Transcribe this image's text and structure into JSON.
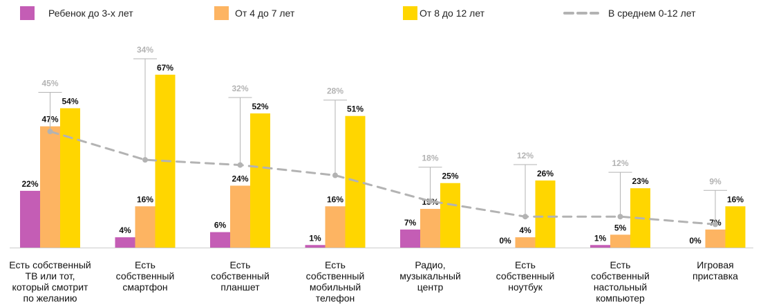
{
  "chart_data": {
    "type": "bar",
    "categories": [
      [
        "Есть собственный",
        "ТВ или тот,",
        "который смотрит",
        "по желанию"
      ],
      [
        "Есть",
        "собственный",
        "смартфон"
      ],
      [
        "Есть",
        "собственный",
        "планшет"
      ],
      [
        "Есть",
        "собственный",
        "мобильный",
        "телефон"
      ],
      [
        "Радио,",
        "музыкальный",
        "центр"
      ],
      [
        "Есть",
        "собственный",
        "ноутбук"
      ],
      [
        "Есть",
        "собственный",
        "настольный",
        "компьютер"
      ],
      [
        "Игровая",
        "приставка"
      ]
    ],
    "series": [
      {
        "name": "Ребенок до 3-х лет",
        "color": "#c45db5",
        "values": [
          22,
          4,
          6,
          1,
          7,
          0,
          1,
          0
        ],
        "labels": [
          "22%",
          "4%",
          "6%",
          "1%",
          "7%",
          "0%",
          "1%",
          "0%"
        ]
      },
      {
        "name": "От 4 до 7 лет",
        "color": "#fdb462",
        "values": [
          47,
          16,
          24,
          16,
          15,
          4,
          5,
          7
        ],
        "labels": [
          "47%",
          "16%",
          "24%",
          "16%",
          "15%",
          "4%",
          "5%",
          "7%"
        ]
      },
      {
        "name": "От 8 до 12 лет",
        "color": "#ffd600",
        "values": [
          54,
          67,
          52,
          51,
          25,
          26,
          23,
          16
        ],
        "labels": [
          "54%",
          "67%",
          "52%",
          "51%",
          "25%",
          "26%",
          "23%",
          "16%"
        ]
      }
    ],
    "average": {
      "name": "В среднем 0-12 лет",
      "color": "#b3b3b3",
      "values": [
        45,
        34,
        32,
        28,
        18,
        12,
        12,
        9
      ],
      "labels": [
        "45%",
        "34%",
        "32%",
        "28%",
        "18%",
        "12%",
        "12%",
        "9%"
      ]
    },
    "ylim": [
      0,
      70
    ],
    "legend_position": "top",
    "grid": false
  }
}
